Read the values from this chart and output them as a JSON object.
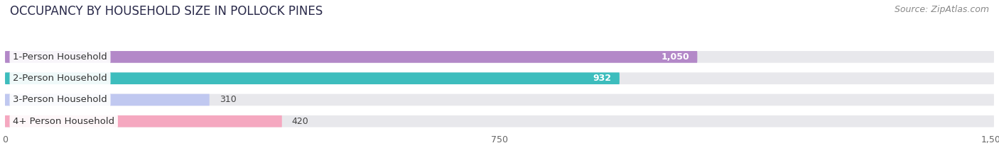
{
  "title": "OCCUPANCY BY HOUSEHOLD SIZE IN POLLOCK PINES",
  "source": "Source: ZipAtlas.com",
  "categories": [
    "1-Person Household",
    "2-Person Household",
    "3-Person Household",
    "4+ Person Household"
  ],
  "values": [
    1050,
    932,
    310,
    420
  ],
  "bar_colors": [
    "#b388c8",
    "#3dbdbd",
    "#c0c8f0",
    "#f5a8c0"
  ],
  "label_colors": [
    "white",
    "white",
    "#444444",
    "#444444"
  ],
  "xlim": [
    0,
    1500
  ],
  "xticks": [
    0,
    750,
    1500
  ],
  "xtick_labels": [
    "0",
    "750",
    "1,500"
  ],
  "title_fontsize": 12,
  "source_fontsize": 9,
  "bar_label_fontsize": 9,
  "category_fontsize": 9.5,
  "background_color": "#ffffff",
  "bar_background_color": "#e8e8ec"
}
